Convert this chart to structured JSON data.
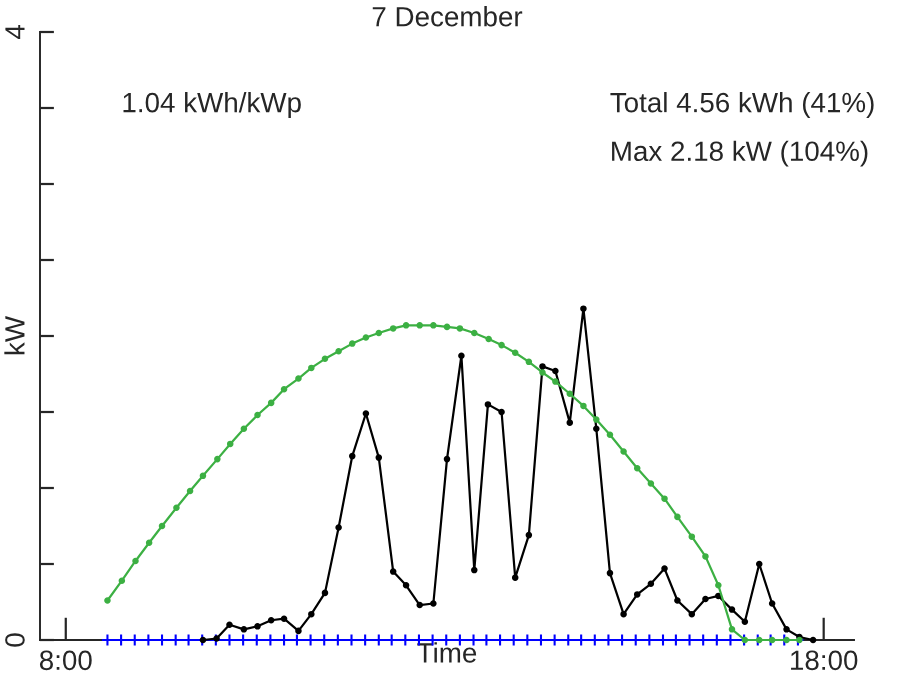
{
  "chart_data": {
    "type": "line",
    "title": "7 December",
    "xlabel": "Time",
    "ylabel": "kW",
    "annotations": [
      "1.04 kWh/kWp",
      "Total 4.56 kWh (41%)",
      "Max 2.18 kW (104%)"
    ],
    "xlim": [
      7.66,
      18.4
    ],
    "xticks": [
      {
        "value": 8,
        "label": "8:00"
      },
      {
        "value": 18,
        "label": "18:00"
      }
    ],
    "ylim": [
      0,
      4
    ],
    "yticks": [
      0,
      {
        "value": 0.5,
        "label": null
      },
      {
        "value": 1,
        "label": null
      },
      {
        "value": 1.5,
        "label": null
      },
      {
        "value": 2,
        "label": null
      },
      {
        "value": 2.5,
        "label": null
      },
      {
        "value": 3,
        "label": null
      },
      {
        "value": 3.5,
        "label": null
      },
      4
    ],
    "grid": false,
    "legend": false,
    "series": [
      {
        "color": "#3cb043",
        "marker": "circle",
        "x": [
          8.55,
          8.74,
          8.92,
          9.1,
          9.27,
          9.46,
          9.64,
          9.81,
          10.0,
          10.17,
          10.35,
          10.53,
          10.71,
          10.88,
          11.07,
          11.24,
          11.42,
          11.6,
          11.78,
          11.96,
          12.13,
          12.32,
          12.49,
          12.67,
          12.85,
          13.03,
          13.2,
          13.39,
          13.58,
          13.75,
          13.93,
          14.11,
          14.29,
          14.46,
          14.65,
          14.83,
          15.0,
          15.18,
          15.36,
          15.54,
          15.72,
          15.9,
          16.07,
          16.26,
          16.44,
          16.61,
          16.79,
          16.96,
          17.15,
          17.32,
          17.51,
          17.68
        ],
        "values": [
          0.26,
          0.39,
          0.52,
          0.64,
          0.75,
          0.87,
          0.98,
          1.08,
          1.19,
          1.29,
          1.39,
          1.48,
          1.56,
          1.65,
          1.72,
          1.79,
          1.85,
          1.9,
          1.95,
          1.99,
          2.02,
          2.05,
          2.07,
          2.07,
          2.07,
          2.06,
          2.05,
          2.02,
          1.98,
          1.94,
          1.89,
          1.83,
          1.76,
          1.7,
          1.62,
          1.54,
          1.45,
          1.35,
          1.24,
          1.13,
          1.03,
          0.93,
          0.81,
          0.68,
          0.55,
          0.36,
          0.07,
          0,
          0,
          0,
          0,
          0
        ]
      },
      {
        "color": "#000000",
        "marker": "circle",
        "x": [
          9.81,
          9.99,
          10.16,
          10.35,
          10.53,
          10.71,
          10.88,
          11.07,
          11.24,
          11.42,
          11.6,
          11.78,
          11.96,
          12.13,
          12.32,
          12.49,
          12.67,
          12.85,
          13.03,
          13.22,
          13.39,
          13.57,
          13.75,
          13.93,
          14.11,
          14.29,
          14.46,
          14.65,
          14.83,
          15.0,
          15.18,
          15.36,
          15.54,
          15.72,
          15.9,
          16.07,
          16.26,
          16.44,
          16.61,
          16.79,
          16.96,
          17.15,
          17.32,
          17.51,
          17.68,
          17.86
        ],
        "values": [
          0,
          0.01,
          0.1,
          0.07,
          0.09,
          0.13,
          0.14,
          0.06,
          0.17,
          0.31,
          0.74,
          1.21,
          1.49,
          1.2,
          0.45,
          0.36,
          0.23,
          0.24,
          1.19,
          1.87,
          0.46,
          1.55,
          1.5,
          0.41,
          0.69,
          1.8,
          1.77,
          1.43,
          2.18,
          1.39,
          0.44,
          0.17,
          0.3,
          0.37,
          0.47,
          0.26,
          0.17,
          0.27,
          0.29,
          0.2,
          0.12,
          0.5,
          0.24,
          0.07,
          0.02,
          0
        ]
      },
      {
        "color": "#0000ff",
        "marker": "cross",
        "x": [
          8.55,
          8.73,
          8.91,
          9.09,
          9.27,
          9.45,
          9.62,
          9.8,
          9.98,
          10.16,
          10.34,
          10.52,
          10.7,
          10.88,
          11.05,
          11.23,
          11.41,
          11.59,
          11.77,
          11.95,
          12.13,
          12.3,
          12.48,
          12.66,
          12.84,
          13.02,
          13.2,
          13.38,
          13.55,
          13.73,
          13.91,
          14.09,
          14.27,
          14.45,
          14.63,
          14.8,
          14.98,
          15.16,
          15.34,
          15.52,
          15.7,
          15.88,
          16.05,
          16.23,
          16.41,
          16.59,
          16.77,
          16.95,
          17.13,
          17.3,
          17.48,
          17.66
        ],
        "values": [
          0,
          0,
          0,
          0,
          0,
          0,
          0,
          0,
          0,
          0,
          0,
          0,
          0,
          0,
          0,
          0,
          0,
          0,
          0,
          0,
          0,
          0,
          0,
          0,
          0,
          0,
          0,
          0,
          0,
          0,
          0,
          0,
          0,
          0,
          0,
          0,
          0,
          0,
          0,
          0,
          0,
          0,
          0,
          0,
          0,
          0,
          0,
          0,
          0,
          0,
          0,
          0
        ]
      }
    ]
  }
}
